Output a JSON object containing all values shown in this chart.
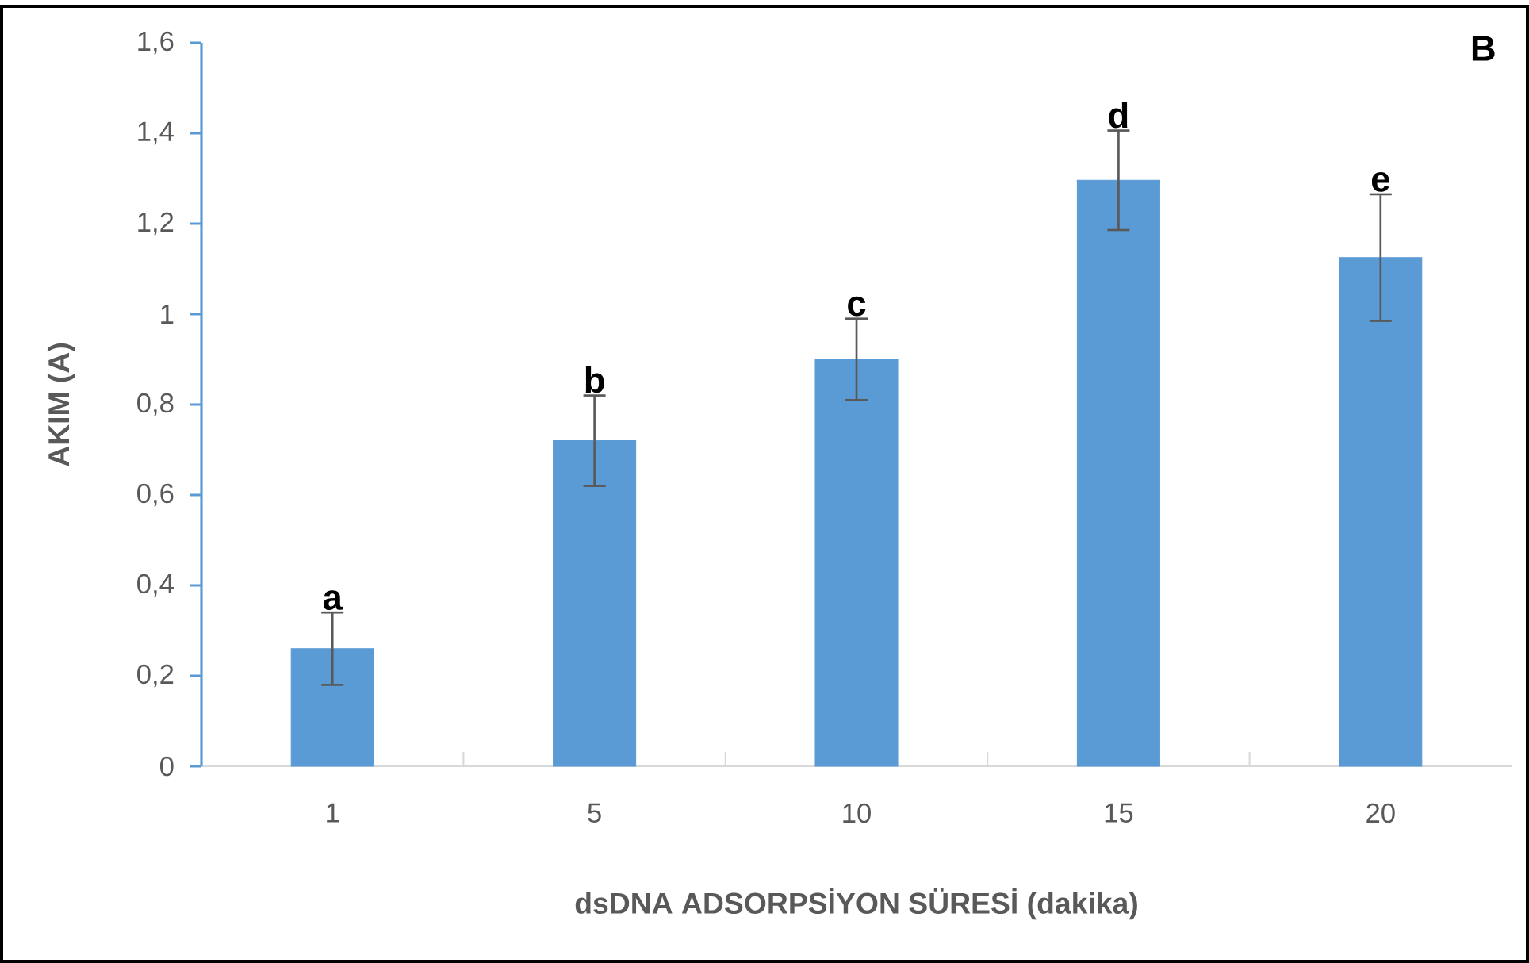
{
  "chart_data": {
    "type": "bar",
    "xlabel": "dsDNA ADSORPSİYON SÜRESİ (dakika)",
    "ylabel": "AKIM (A)",
    "categories": [
      "1",
      "5",
      "10",
      "15",
      "20"
    ],
    "values": [
      0.26,
      0.72,
      0.9,
      1.296,
      1.125
    ],
    "errors": [
      0.08,
      0.1,
      0.09,
      0.11,
      0.14
    ],
    "color": "#5b9bd5",
    "ylim": [
      0,
      1.6
    ],
    "yticks": [
      0,
      {
        "value": 0.2,
        "label": "0,2"
      },
      {
        "value": 0.4,
        "label": "0,4"
      },
      {
        "value": 0.6,
        "label": "0,6"
      },
      {
        "value": 0.8,
        "label": "0,8"
      },
      1,
      {
        "value": 1.2,
        "label": "1,2"
      },
      {
        "value": 1.4,
        "label": "1,4"
      },
      {
        "value": 1.6,
        "label": "1,6"
      }
    ],
    "grid": false,
    "annotations": [
      {
        "text": "a",
        "x": "1",
        "y": 0.34
      },
      {
        "text": "b",
        "x": "5",
        "y": 0.82
      },
      {
        "text": "c",
        "x": "10",
        "y": 0.99
      },
      {
        "text": "d",
        "x": "15",
        "y": 1.406
      },
      {
        "text": "e",
        "x": "20",
        "y": 1.265
      },
      "B"
    ]
  }
}
